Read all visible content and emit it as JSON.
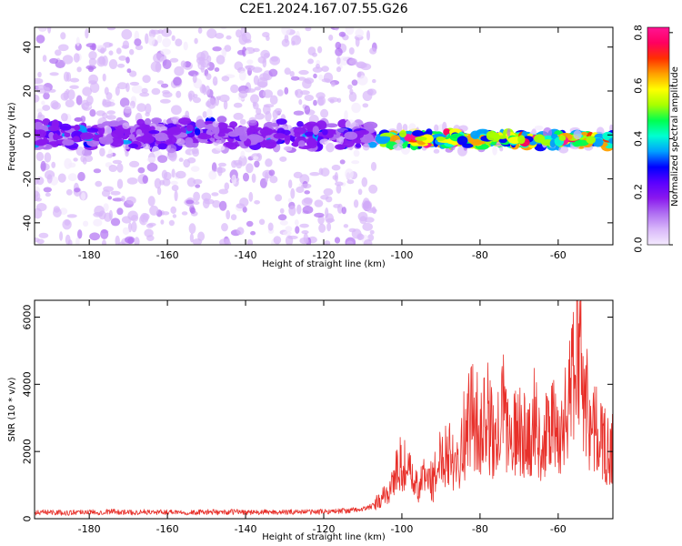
{
  "figure_title": "C2E1.2024.167.07.55.G26",
  "colors": {
    "snr_line": "#e8302a",
    "colormap": [
      "#f4eafe",
      "#d9b8fa",
      "#b070f2",
      "#8a18ee",
      "#5a00ff",
      "#0000ff",
      "#00a0ff",
      "#00ffd2",
      "#00ff50",
      "#a8ff00",
      "#ffff00",
      "#ffa000",
      "#ff3000",
      "#ff0060",
      "#ff1493"
    ]
  },
  "chart_data": [
    {
      "type": "heatmap",
      "xlabel": "Height of straight line (km)",
      "ylabel": "Frequency (Hz)",
      "xlim": [
        -194,
        -46
      ],
      "ylim": [
        -50,
        49
      ],
      "xticks": [
        -180,
        -160,
        -140,
        -120,
        -100,
        -80,
        -60
      ],
      "yticks": [
        -40,
        -20,
        0,
        20,
        40
      ],
      "colorbar": {
        "label": "Normalized spectral amplitude",
        "range": [
          0,
          0.82
        ],
        "ticks": [
          0.0,
          0.2,
          0.4,
          0.6,
          0.8
        ]
      },
      "regions": [
        {
          "x_range": [
            -194,
            -107
          ],
          "center_freq": 0,
          "core_halfwidth_hz": 8,
          "scatter_halfwidth_hz": 50,
          "typical_amplitude": 0.15,
          "max_amplitude": 0.35
        },
        {
          "x_range": [
            -105,
            -46
          ],
          "center_freq": -2,
          "core_halfwidth_hz": 4,
          "scatter_halfwidth_hz": 6,
          "typical_amplitude": 0.45,
          "max_amplitude": 0.82
        }
      ]
    },
    {
      "type": "line",
      "series": [
        {
          "values": [
            [
              -194,
              180
            ],
            [
              -190,
              200
            ],
            [
              -186,
              170
            ],
            [
              -182,
              210
            ],
            [
              -178,
              190
            ],
            [
              -174,
              220
            ],
            [
              -170,
              180
            ],
            [
              -166,
              200
            ],
            [
              -162,
              190
            ],
            [
              -158,
              210
            ],
            [
              -154,
              180
            ],
            [
              -150,
              200
            ],
            [
              -146,
              190
            ],
            [
              -142,
              210
            ],
            [
              -138,
              180
            ],
            [
              -134,
              200
            ],
            [
              -130,
              190
            ],
            [
              -126,
              210
            ],
            [
              -122,
              200
            ],
            [
              -118,
              220
            ],
            [
              -114,
              240
            ],
            [
              -110,
              280
            ],
            [
              -107,
              400
            ],
            [
              -104,
              700
            ],
            [
              -102,
              1200
            ],
            [
              -100,
              1700
            ],
            [
              -98,
              1300
            ],
            [
              -96,
              900
            ],
            [
              -94,
              1300
            ],
            [
              -92,
              1100
            ],
            [
              -90,
              1900
            ],
            [
              -88,
              2100
            ],
            [
              -86,
              1700
            ],
            [
              -84,
              2500
            ],
            [
              -82,
              3200
            ],
            [
              -80,
              2600
            ],
            [
              -78,
              3000
            ],
            [
              -76,
              2100
            ],
            [
              -74,
              3300
            ],
            [
              -72,
              2200
            ],
            [
              -70,
              2800
            ],
            [
              -68,
              2300
            ],
            [
              -66,
              3000
            ],
            [
              -64,
              2000
            ],
            [
              -62,
              2900
            ],
            [
              -60,
              2400
            ],
            [
              -58,
              3100
            ],
            [
              -56,
              4200
            ],
            [
              -55,
              6200
            ],
            [
              -54,
              4500
            ],
            [
              -52,
              3000
            ],
            [
              -50,
              2500
            ],
            [
              -48,
              2200
            ],
            [
              -46,
              2000
            ]
          ]
        }
      ],
      "xlabel": "Height of straight line (km)",
      "ylabel": "SNR (10 * v/v)",
      "xlim": [
        -194,
        -46
      ],
      "ylim": [
        0,
        6500
      ],
      "xticks": [
        -180,
        -160,
        -140,
        -120,
        -100,
        -80,
        -60
      ],
      "yticks": [
        0,
        2000,
        4000,
        6000
      ]
    }
  ]
}
